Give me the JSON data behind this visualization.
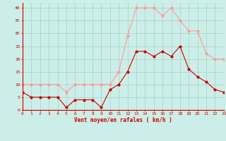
{
  "hours": [
    0,
    1,
    2,
    3,
    4,
    5,
    6,
    7,
    8,
    9,
    10,
    11,
    12,
    13,
    14,
    15,
    16,
    17,
    18,
    19,
    20,
    21,
    22,
    23
  ],
  "wind_avg": [
    7,
    5,
    5,
    5,
    5,
    1,
    4,
    4,
    4,
    1,
    8,
    10,
    15,
    23,
    23,
    21,
    23,
    21,
    25,
    16,
    13,
    11,
    8,
    7
  ],
  "wind_gust": [
    10,
    10,
    10,
    10,
    10,
    7,
    10,
    10,
    10,
    10,
    10,
    15,
    29,
    40,
    40,
    40,
    37,
    40,
    35,
    31,
    31,
    22,
    20,
    20
  ],
  "bg_color": "#cceee8",
  "grid_color": "#aad4ce",
  "avg_color": "#cc0000",
  "gust_color": "#ff9999",
  "xlabel": "Vent moyen/en rafales ( km/h )",
  "ylabel_ticks": [
    0,
    5,
    10,
    15,
    20,
    25,
    30,
    35,
    40
  ],
  "xlim": [
    0,
    23
  ],
  "ylim": [
    0,
    42
  ]
}
